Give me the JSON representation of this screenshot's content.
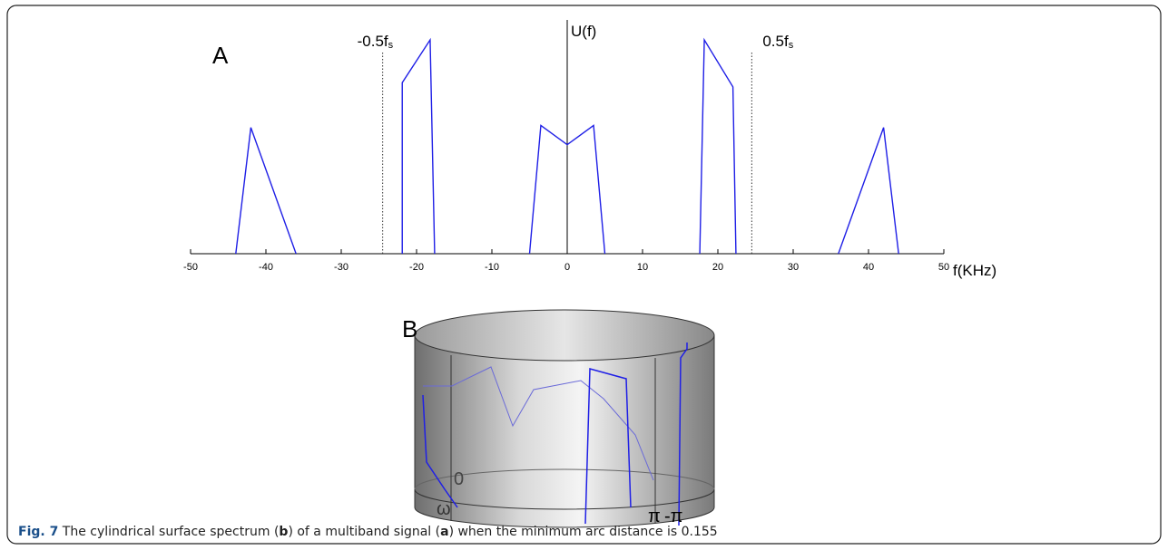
{
  "chart_data": {
    "type": "line",
    "panel": "A",
    "x_label": "f(KHz)",
    "y_label": "U(f)",
    "x": [
      -44,
      -42,
      -36,
      null,
      -21.9,
      -21.9,
      -18.2,
      -17.6,
      null,
      -5,
      -3.5,
      0,
      3.5,
      5,
      null,
      17.6,
      18.2,
      22,
      22.4,
      null,
      36,
      42,
      44
    ],
    "series": [
      {
        "color": "#1f1fe6",
        "values": [
          0,
          0.59,
          0,
          null,
          0,
          0.8,
          1.0,
          0,
          null,
          0,
          0.6,
          0.51,
          0.6,
          0,
          null,
          0,
          1.0,
          0.78,
          0,
          null,
          0,
          0.59,
          0
        ]
      }
    ],
    "xlim": [
      -50,
      50
    ],
    "xticks": [
      -50,
      -40,
      -30,
      -20,
      -10,
      0,
      10,
      20,
      30,
      40,
      50
    ],
    "ylim": [
      0,
      1.0
    ],
    "vlines": [
      {
        "x": -24.5,
        "label": "-0.5f",
        "sub": "s"
      },
      {
        "x": 24.5,
        "label": "0.5f",
        "sub": "s"
      }
    ]
  },
  "panel_b": {
    "label": "B",
    "zero": "0",
    "omega": "ω",
    "pi": "π",
    "minus_pi": "-π"
  },
  "caption": {
    "fig": "Fig. 7",
    "t1": " The cylindrical surface spectrum (",
    "b": "b",
    "t2": ") of a multiband signal (",
    "a": "a",
    "t3": ") when the minimum arc distance is 0.155"
  }
}
